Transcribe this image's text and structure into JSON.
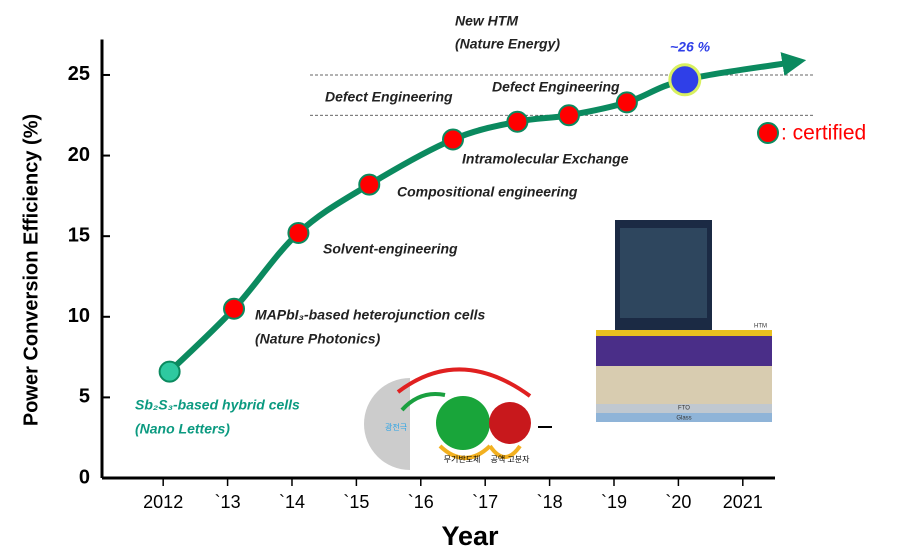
{
  "chart_data": {
    "type": "scatter",
    "ylabel": "Power Conversion Efficiency (%)",
    "xlabel": "Year",
    "xlim": [
      2011.05,
      2021.5
    ],
    "ylim": [
      0,
      27.2
    ],
    "xticks": [
      {
        "value": 2012,
        "label": "2012"
      },
      {
        "value": 2013,
        "label": "`13"
      },
      {
        "value": 2014,
        "label": "`14"
      },
      {
        "value": 2015,
        "label": "`15"
      },
      {
        "value": 2016,
        "label": "`16"
      },
      {
        "value": 2017,
        "label": "`17"
      },
      {
        "value": 2018,
        "label": "`18"
      },
      {
        "value": 2019,
        "label": "`19"
      },
      {
        "value": 2020,
        "label": "`20"
      },
      {
        "value": 2021,
        "label": "2021"
      }
    ],
    "yticks": [
      0,
      5,
      10,
      15,
      20,
      25
    ],
    "hlines": [
      25,
      22.5
    ],
    "trend": {
      "color": "#0b8a5f",
      "x": [
        2012.1,
        2013.1,
        2014.1,
        2015.2,
        2016.5,
        2017.5,
        2018.3,
        2019.2,
        2020.1,
        2021.8
      ],
      "values": [
        6.6,
        10.5,
        15.2,
        18.2,
        21.0,
        22.1,
        22.5,
        23.3,
        24.7,
        25.8
      ]
    },
    "series": [
      {
        "color": "#2ec9a0",
        "x": [
          2012.1
        ],
        "values": [
          6.6
        ]
      },
      {
        "name": ": certified",
        "color": "#ff0000",
        "x": [
          2013.1,
          2014.1,
          2015.2,
          2016.5,
          2017.5,
          2018.3,
          2019.2
        ],
        "values": [
          10.5,
          15.2,
          18.2,
          21.0,
          22.1,
          22.5,
          23.3
        ]
      },
      {
        "color": "#2f3fe8",
        "x": [
          2020.1
        ],
        "values": [
          24.7
        ]
      }
    ],
    "annotations": [
      "New HTM",
      "(Nature Energy)",
      "~26 %",
      "Defect Engineering",
      "Defect Engineering",
      "Intramolecular Exchange",
      "Compositional engineering",
      "Solvent-engineering",
      "MAPbI₃-based heterojunction cells",
      "(Nature Photonics)",
      "Sb₂S₃-based hybrid cells",
      "(Nano Letters)"
    ],
    "inset_labels": [
      "광전극",
      "무기반도체",
      "공액 고분자",
      "HTM",
      "FTO",
      "Glass"
    ]
  }
}
